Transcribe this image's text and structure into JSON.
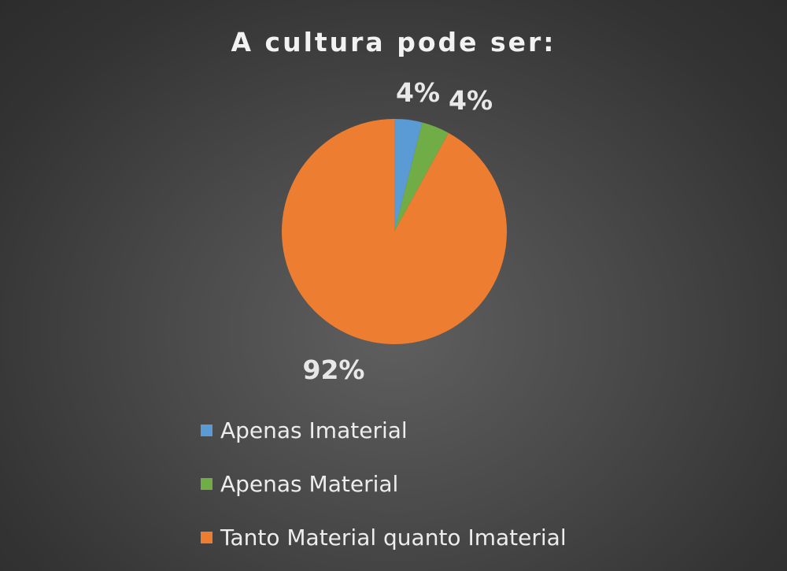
{
  "chart_data": {
    "type": "pie",
    "title": "A cultura pode ser:",
    "categories": [
      "Apenas Imaterial",
      "Apenas Material",
      "Tanto Material quanto Imaterial"
    ],
    "values": [
      4,
      4,
      92
    ],
    "data_labels": [
      "4%",
      "4%",
      "92%"
    ],
    "colors": [
      "#5b9bd5",
      "#70ad47",
      "#ed7d31"
    ],
    "legend_position": "bottom",
    "start_angle": "top, clockwise"
  }
}
